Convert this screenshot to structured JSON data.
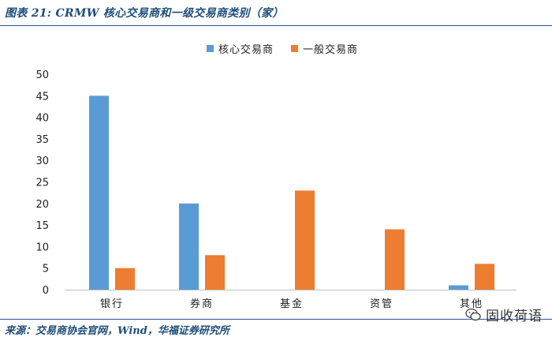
{
  "header": {
    "title": "图表 21:  CRMW 核心交易商和一级交易商类别（家）"
  },
  "legend": {
    "items": [
      {
        "label": "核心交易商",
        "color": "#5b9bd5"
      },
      {
        "label": "一般交易商",
        "color": "#ed7d31"
      }
    ]
  },
  "footer": {
    "source": "来源：交易商协会官网，Wind，华福证券研究所",
    "watermark": "固收荷语"
  },
  "chart_data": {
    "type": "bar",
    "categories": [
      "银行",
      "券商",
      "基金",
      "资管",
      "其他"
    ],
    "series": [
      {
        "name": "核心交易商",
        "values": [
          45,
          20,
          0,
          0,
          1
        ],
        "color": "#5b9bd5"
      },
      {
        "name": "一般交易商",
        "values": [
          5,
          8,
          23,
          14,
          6
        ],
        "color": "#ed7d31"
      }
    ],
    "ylim": [
      0,
      50
    ],
    "yticks": [
      0,
      5,
      10,
      15,
      20,
      25,
      30,
      35,
      40,
      45,
      50
    ],
    "grid": false,
    "legend_position": "top-center"
  }
}
